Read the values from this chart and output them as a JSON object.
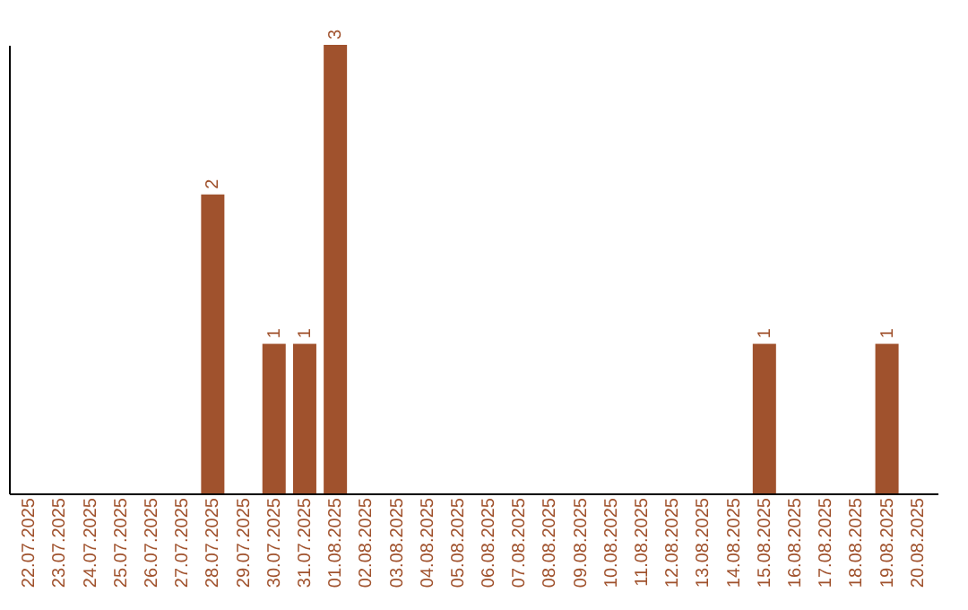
{
  "chart_data": {
    "type": "bar",
    "categories": [
      "22.07.2025",
      "23.07.2025",
      "24.07.2025",
      "25.07.2025",
      "26.07.2025",
      "27.07.2025",
      "28.07.2025",
      "29.07.2025",
      "30.07.2025",
      "31.07.2025",
      "01.08.2025",
      "02.08.2025",
      "03.08.2025",
      "04.08.2025",
      "05.08.2025",
      "06.08.2025",
      "07.08.2025",
      "08.08.2025",
      "09.08.2025",
      "10.08.2025",
      "11.08.2025",
      "12.08.2025",
      "13.08.2025",
      "14.08.2025",
      "15.08.2025",
      "16.08.2025",
      "17.08.2025",
      "18.08.2025",
      "19.08.2025",
      "20.08.2025"
    ],
    "values": [
      0,
      0,
      0,
      0,
      0,
      0,
      2,
      0,
      1,
      1,
      3,
      0,
      0,
      0,
      0,
      0,
      0,
      0,
      0,
      0,
      0,
      0,
      0,
      0,
      1,
      0,
      0,
      0,
      1,
      0
    ],
    "value_labels": [
      null,
      null,
      null,
      null,
      null,
      null,
      "2",
      null,
      "1",
      "1",
      "3",
      null,
      null,
      null,
      null,
      null,
      null,
      null,
      null,
      null,
      null,
      null,
      null,
      null,
      "1",
      null,
      null,
      null,
      "1",
      null
    ],
    "color": "#a0522d",
    "ylim": [
      0,
      3
    ],
    "tick_labels": "x",
    "grid": false
  }
}
